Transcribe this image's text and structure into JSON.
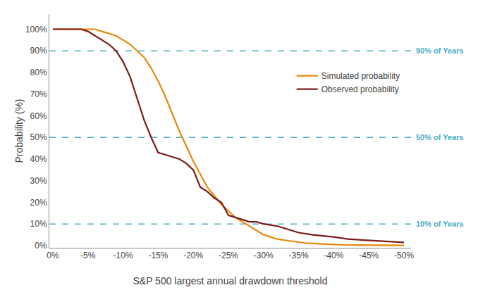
{
  "chart_data": {
    "type": "line",
    "xlabel": "S&P 500 largest annual drawdown threshold",
    "ylabel": "Probability (%)",
    "series": [
      {
        "name": "Simulated probability",
        "color": "#E8870A",
        "x": [
          0,
          -1,
          -2,
          -3,
          -4,
          -5,
          -6,
          -7,
          -8,
          -9,
          -10,
          -11,
          -12,
          -13,
          -14,
          -15,
          -16,
          -17,
          -18,
          -19,
          -20,
          -21,
          -22,
          -23,
          -24,
          -25,
          -26,
          -27,
          -28,
          -29,
          -30,
          -31,
          -32,
          -33,
          -34,
          -35,
          -36,
          -37,
          -38,
          -39,
          -40,
          -42,
          -45,
          -47,
          -50
        ],
        "values": [
          100,
          100,
          100,
          100,
          100,
          100,
          100,
          99,
          98,
          97,
          95,
          93,
          90,
          87,
          82,
          76,
          69,
          61,
          53,
          46,
          39,
          33,
          27,
          23,
          19,
          16,
          13,
          11,
          9,
          7,
          5,
          4,
          3,
          2.5,
          2,
          1.5,
          1.2,
          1.0,
          0.8,
          0.6,
          0.5,
          0.3,
          0.2,
          0.15,
          0.1
        ]
      },
      {
        "name": "Observed probability",
        "color": "#7B1A1A",
        "x": [
          0,
          -1,
          -2,
          -3,
          -4,
          -5,
          -6,
          -7,
          -8,
          -9,
          -10,
          -11,
          -12,
          -13,
          -14,
          -15,
          -16,
          -17,
          -18,
          -19,
          -20,
          -21,
          -22,
          -23,
          -24,
          -25,
          -26,
          -27,
          -28,
          -29,
          -30,
          -32,
          -33,
          -34,
          -35,
          -37,
          -40,
          -42,
          -45,
          -50
        ],
        "values": [
          100,
          100,
          100,
          100,
          100,
          99,
          97,
          95,
          93,
          90,
          85,
          78,
          68,
          58,
          50,
          43,
          42,
          41,
          40,
          38,
          35,
          27,
          25,
          22,
          20,
          14,
          13,
          12,
          11,
          11,
          10,
          9,
          8,
          7,
          6,
          5,
          4,
          3,
          2.5,
          1.5
        ]
      }
    ],
    "reference_lines": [
      {
        "value": 90,
        "label": "90% of Years"
      },
      {
        "value": 50,
        "label": "50% of Years"
      },
      {
        "value": 10,
        "label": "10% of Years"
      }
    ],
    "reference_color": "#4BACC6",
    "reference_line_style": "dash",
    "xlim": [
      0.5,
      -51
    ],
    "xticks": [
      {
        "value": 0,
        "label": "0%"
      },
      {
        "value": -5,
        "label": "-5%"
      },
      {
        "value": -10,
        "label": "-10%"
      },
      {
        "value": -15,
        "label": "-15%"
      },
      {
        "value": -20,
        "label": "-20%"
      },
      {
        "value": -25,
        "label": "-25%"
      },
      {
        "value": -30,
        "label": "-30%"
      },
      {
        "value": -35,
        "label": "-35%"
      },
      {
        "value": -40,
        "label": "-40%"
      },
      {
        "value": -45,
        "label": "-45%"
      },
      {
        "value": -50,
        "label": "-50%"
      }
    ],
    "ylim": [
      -1,
      107
    ],
    "yticks": [
      {
        "value": 0,
        "label": "0%"
      },
      {
        "value": 10,
        "label": "10%"
      },
      {
        "value": 20,
        "label": "20%"
      },
      {
        "value": 30,
        "label": "30%"
      },
      {
        "value": 40,
        "label": "40%"
      },
      {
        "value": 50,
        "label": "50%"
      },
      {
        "value": 60,
        "label": "60%"
      },
      {
        "value": 70,
        "label": "70%"
      },
      {
        "value": 80,
        "label": "80%"
      },
      {
        "value": 90,
        "label": "90%"
      },
      {
        "value": 100,
        "label": "100%"
      }
    ],
    "grid": false,
    "legend": "upper right"
  }
}
